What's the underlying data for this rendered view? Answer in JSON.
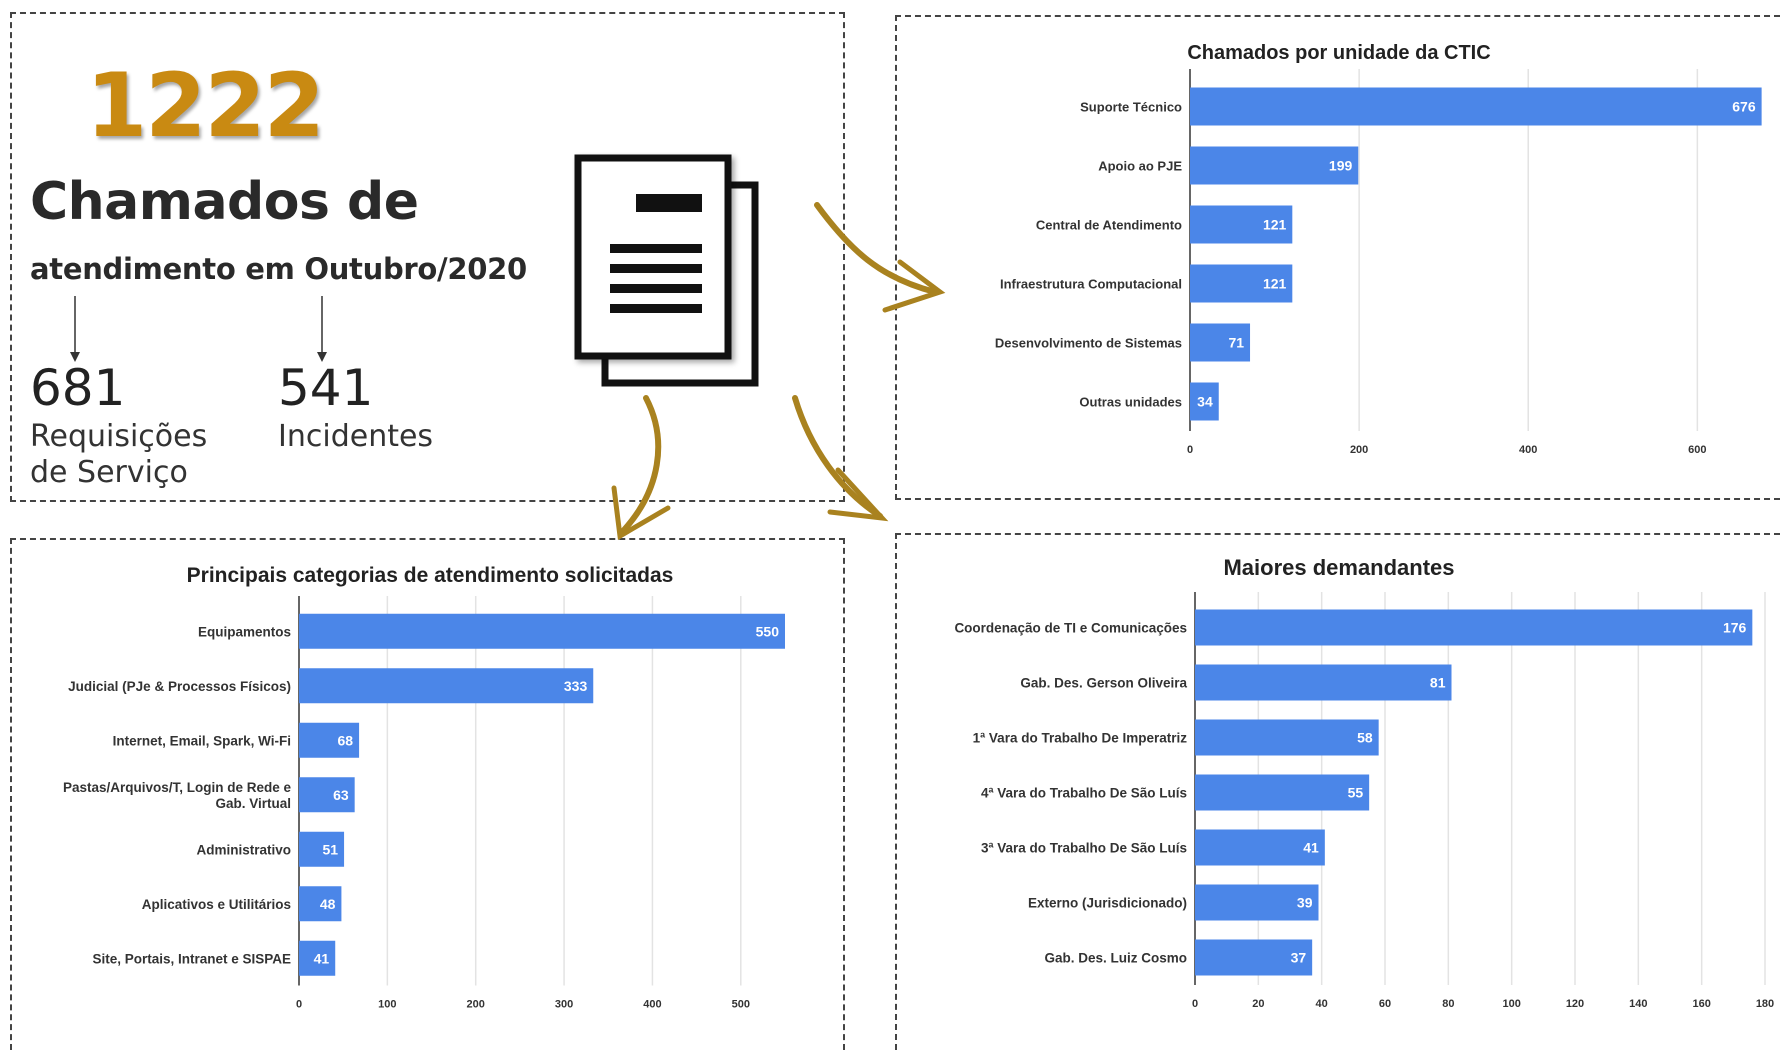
{
  "summary": {
    "total": "1222",
    "title_line1": "Chamados de",
    "title_line2": "atendimento em Outubro/2020",
    "requests": {
      "value": "681",
      "label_line1": "Requisições",
      "label_line2": "de Serviço"
    },
    "incidents": {
      "value": "541",
      "label": "Incidentes"
    },
    "accent_color": "#c98a12",
    "icon": "document-icon"
  },
  "chart_data": [
    {
      "id": "ctic",
      "type": "bar",
      "orientation": "horizontal",
      "title": "Chamados por unidade da CTIC",
      "categories": [
        "Suporte Técnico",
        "Apoio ao PJE",
        "Central de Atendimento",
        "Infraestrutura Computacional",
        "Desenvolvimento de Sistemas",
        "Outras unidades"
      ],
      "values": [
        676,
        199,
        121,
        121,
        71,
        34
      ],
      "xlim": [
        0,
        680
      ],
      "xticks": [
        0,
        200,
        400,
        600
      ],
      "grid": true,
      "color": "#4b86e8"
    },
    {
      "id": "categories",
      "type": "bar",
      "orientation": "horizontal",
      "title": "Principais categorias de atendimento solicitadas",
      "categories": [
        "Equipamentos",
        "Judicial (PJe & Processos Físicos)",
        "Internet, Email, Spark, Wi-Fi",
        "Pastas/Arquivos/T, Login de Rede e Gab. Virtual",
        "Administrativo",
        "Aplicativos e Utilitários",
        "Site, Portais,  Intranet e SISPAE"
      ],
      "values": [
        550,
        333,
        68,
        63,
        51,
        48,
        41
      ],
      "xlim": [
        0,
        550
      ],
      "xticks": [
        0,
        100,
        200,
        300,
        400,
        500
      ],
      "grid": true,
      "color": "#4b86e8"
    },
    {
      "id": "demandantes",
      "type": "bar",
      "orientation": "horizontal",
      "title": "Maiores demandantes",
      "categories": [
        "Coordenação de TI e Comunicações",
        "Gab. Des. Gerson Oliveira",
        "1ª Vara do Trabalho De Imperatriz",
        "4ª Vara do Trabalho De São Luís",
        "3ª Vara do Trabalho De São Luís",
        "Externo (Jurisdicionado)",
        "Gab. Des. Luiz Cosmo"
      ],
      "values": [
        176,
        81,
        58,
        55,
        41,
        39,
        37
      ],
      "xlim": [
        0,
        180
      ],
      "xticks": [
        0,
        20,
        40,
        60,
        80,
        100,
        120,
        140,
        160,
        180
      ],
      "grid": true,
      "color": "#4b86e8"
    }
  ],
  "flow_arrow_color": "#a9821f"
}
